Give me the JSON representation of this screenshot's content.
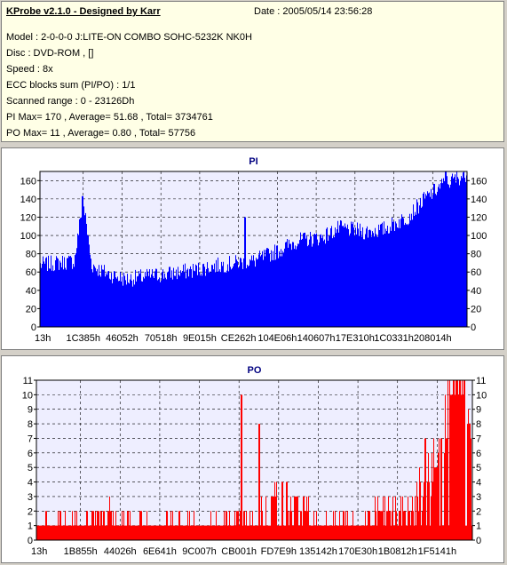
{
  "app": {
    "title": "KProbe v2.1.0 - Designed by Karr"
  },
  "info": {
    "date": "Date : 2005/05/14 23:56:28",
    "lines": [
      "Model : 2-0-0-0 J:LITE-ON COMBO SOHC-5232K NK0H",
      "Disc : DVD-ROM ,  []",
      "Speed : 8x",
      "ECC blocks sum (PI/PO) : 1/1",
      "Scanned range : 0 - 23126Dh",
      "PI Max= 170 , Average= 51.68 , Total= 3734761",
      "PO Max= 11 , Average= 0.80 , Total= 57756"
    ]
  },
  "colors": {
    "pi": "#0000ff",
    "po": "#ff0000",
    "plot_bg": "#eeeeff",
    "grid": "#000000",
    "title": "#000080"
  },
  "chart_data": [
    {
      "type": "area",
      "title": "PI",
      "xlabel": "",
      "ylabel": "",
      "ylim": [
        0,
        170
      ],
      "yticks": [
        0,
        20,
        40,
        60,
        80,
        100,
        120,
        140,
        160
      ],
      "xtick_labels": [
        "13h",
        "1C385h",
        "46052h",
        "70518h",
        "9E015h",
        "CE262h",
        "104E06h",
        "140607h",
        "17E310h",
        "1C0331h",
        "208014h"
      ],
      "grid": true,
      "series": [
        {
          "x": [
            0,
            4,
            8,
            10,
            12,
            14,
            16,
            20,
            26,
            30,
            36,
            40,
            46,
            50,
            56,
            60,
            66,
            70,
            76,
            80,
            86,
            90,
            94,
            100
          ],
          "values": [
            68,
            70,
            72,
            140,
            68,
            62,
            58,
            52,
            56,
            58,
            62,
            66,
            70,
            72,
            84,
            94,
            98,
            108,
            104,
            106,
            120,
            140,
            155,
            168
          ],
          "spikes": [
            [
              9.8,
              143
            ],
            [
              48,
              120
            ],
            [
              95,
              170
            ]
          ]
        }
      ]
    },
    {
      "type": "bar",
      "title": "PO",
      "xlabel": "",
      "ylabel": "",
      "ylim": [
        0,
        11
      ],
      "yticks": [
        0,
        1,
        2,
        3,
        4,
        5,
        6,
        7,
        8,
        9,
        10,
        11
      ],
      "xtick_labels": [
        "13h",
        "1B855h",
        "44026h",
        "6E641h",
        "9C007h",
        "CB001h",
        "FD7E9h",
        "135142h",
        "170E30h",
        "1B0812h",
        "1F5141h"
      ],
      "grid": true,
      "series": [
        {
          "x": [
            0,
            5,
            10,
            15,
            20,
            25,
            30,
            35,
            40,
            45,
            50,
            55,
            60,
            65,
            70,
            75,
            80,
            85,
            88,
            90,
            92,
            94,
            96,
            98,
            100
          ],
          "values": [
            2,
            2,
            2,
            3,
            2,
            2,
            2,
            2,
            2,
            2,
            2,
            4,
            3,
            2,
            2,
            2,
            3,
            3,
            3,
            4,
            6,
            8,
            11,
            10,
            8
          ],
          "spikes": [
            [
              47,
              10
            ],
            [
              51,
              8
            ],
            [
              89,
              7
            ],
            [
              97,
              11
            ]
          ]
        }
      ]
    }
  ]
}
